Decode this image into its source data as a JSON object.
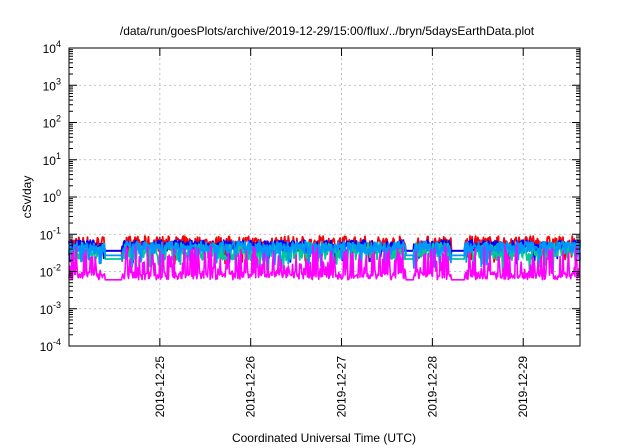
{
  "chart_data": {
    "type": "line",
    "title": "/data/run/goesPlots/archive/2019-12-29/15:00/flux/../bryn/5daysEarthData.plot",
    "xlabel": "Coordinated Universal Time (UTC)",
    "ylabel": "cSv/day",
    "yscale": "log",
    "ylim": [
      0.0001,
      10000
    ],
    "y_ticks": [
      {
        "base": "10",
        "exp": "-4",
        "value": 0.0001
      },
      {
        "base": "10",
        "exp": "-3",
        "value": 0.001
      },
      {
        "base": "10",
        "exp": "-2",
        "value": 0.01
      },
      {
        "base": "10",
        "exp": "-1",
        "value": 0.1
      },
      {
        "base": "10",
        "exp": "0",
        "value": 1
      },
      {
        "base": "10",
        "exp": "1",
        "value": 10
      },
      {
        "base": "10",
        "exp": "2",
        "value": 100
      },
      {
        "base": "10",
        "exp": "3",
        "value": 1000
      },
      {
        "base": "10",
        "exp": "4",
        "value": 10000
      }
    ],
    "xlim": [
      "2019-12-24T00:00",
      "2019-12-29T15:00"
    ],
    "x_ticks": [
      "2019-12-25",
      "2019-12-26",
      "2019-12-27",
      "2019-12-28",
      "2019-12-29"
    ],
    "grid": true,
    "legend": "none",
    "series": [
      {
        "color": "#ff0000",
        "base": 0.06,
        "high": 0.09,
        "low": 0.035,
        "dips": true,
        "dip_to": 0.02
      },
      {
        "color": "#0000ff",
        "base": 0.05,
        "high": 0.07,
        "low": 0.035,
        "dips": true,
        "dip_to": 0.02
      },
      {
        "color": "#00c896",
        "base": 0.04,
        "high": 0.06,
        "low": 0.02,
        "dips": true,
        "dip_to": 0.012
      },
      {
        "color": "#0096ff",
        "base": 0.045,
        "high": 0.065,
        "low": 0.03,
        "dips": true,
        "dip_to": 0.015
      },
      {
        "color": "#ff00ff",
        "base": 0.01,
        "high": 0.05,
        "low": 0.006,
        "dips": false,
        "dip_to": 0.006
      }
    ],
    "gap_segments": [
      {
        "start": "2019-12-24T09:30",
        "end": "2019-12-24T14:00"
      },
      {
        "start": "2019-12-27T17:00",
        "end": "2019-12-27T19:00"
      },
      {
        "start": "2019-12-28T05:00",
        "end": "2019-12-28T08:30"
      }
    ]
  }
}
